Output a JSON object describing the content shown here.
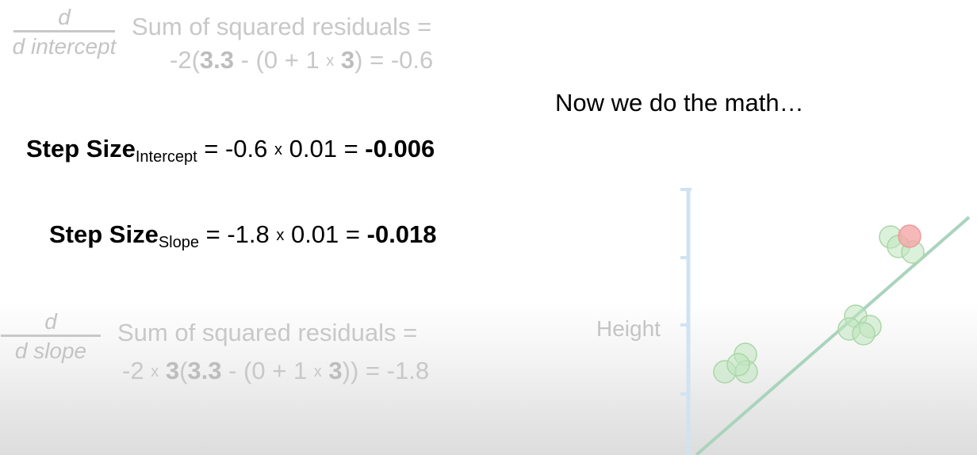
{
  "top_derivative": {
    "numerator": "d",
    "denominator": "d intercept",
    "label": "Sum of squared residuals =",
    "expr_start": "-2(",
    "b1": "3.3",
    "m1": " - (0 + 1 ",
    "times": "x",
    "m2": " ",
    "b2": "3",
    "m3": ") = -0.6"
  },
  "narration": "Now we do the math…",
  "step_intercept": {
    "label": "Step Size",
    "subscript": "Intercept",
    "expr": " = -0.6 ",
    "times": "x",
    "rest": " 0.01 = ",
    "result": "-0.006"
  },
  "step_slope": {
    "label": "Step Size",
    "subscript": "Slope",
    "expr": " = -1.8 ",
    "times": "x",
    "rest": " 0.01 = ",
    "result": "-0.018"
  },
  "bottom_derivative": {
    "numerator": "d",
    "denominator": "d slope",
    "label": "Sum of squared residuals =",
    "expr_start": "-2 ",
    "times": "x",
    "m0": " ",
    "b0": "3",
    "p0": "(",
    "b1": "3.3",
    "m1": " - (0 + 1 ",
    "m2": " ",
    "b2": "3",
    "m3": ")) = -1.8"
  },
  "plot": {
    "axis_label": "Height",
    "axis_color": "#cfe3f3",
    "line_color": "#a9d3bd",
    "point_color": "#bfe6bd",
    "highlight_point_color": "#f4a7a7"
  }
}
